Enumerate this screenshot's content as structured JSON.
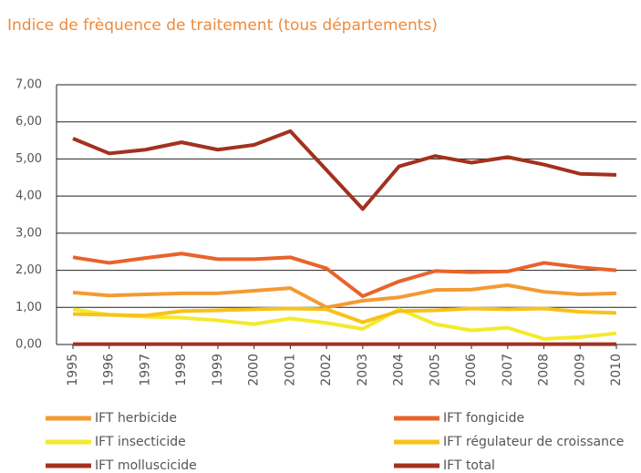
{
  "chart_data": {
    "type": "line",
    "title": "Indice de frèquence de traitement (tous départements)",
    "categories": [
      "1995",
      "1996",
      "1997",
      "1998",
      "1999",
      "2000",
      "2001",
      "2002",
      "2003",
      "2004",
      "2005",
      "2006",
      "2007",
      "2008",
      "2009",
      "2010"
    ],
    "ylim": [
      0,
      7
    ],
    "yticks": [
      {
        "value": 0,
        "label": "0,00"
      },
      {
        "value": 1,
        "label": "1,00"
      },
      {
        "value": 2,
        "label": "2,00"
      },
      {
        "value": 3,
        "label": "3,00"
      },
      {
        "value": 4,
        "label": "4,00"
      },
      {
        "value": 5,
        "label": "5,00"
      },
      {
        "value": 6,
        "label": "6,00"
      },
      {
        "value": 7,
        "label": "7,00"
      }
    ],
    "grid": true,
    "series": [
      {
        "name": "IFT herbicide",
        "color": "#f39a33",
        "values": [
          1.4,
          1.32,
          1.35,
          1.38,
          1.38,
          1.45,
          1.52,
          1.0,
          1.18,
          1.27,
          1.47,
          1.48,
          1.6,
          1.42,
          1.35,
          1.38
        ]
      },
      {
        "name": "IFT fongicide",
        "color": "#e8632b",
        "values": [
          2.35,
          2.2,
          2.33,
          2.45,
          2.3,
          2.3,
          2.35,
          2.05,
          1.3,
          1.7,
          1.98,
          1.95,
          1.97,
          2.2,
          2.08,
          2.0
        ]
      },
      {
        "name": "IFT insecticide",
        "color": "#f3ea2c",
        "values": [
          0.95,
          0.8,
          0.75,
          0.72,
          0.65,
          0.55,
          0.7,
          0.58,
          0.42,
          0.95,
          0.55,
          0.38,
          0.45,
          0.15,
          0.2,
          0.3
        ]
      },
      {
        "name": "IFT régulateur de croissance",
        "color": "#f8c219",
        "values": [
          0.82,
          0.8,
          0.78,
          0.9,
          0.92,
          0.95,
          0.97,
          0.95,
          0.6,
          0.9,
          0.92,
          0.97,
          0.95,
          0.97,
          0.88,
          0.85
        ]
      },
      {
        "name": "IFT molluscicide",
        "color": "#a3311f",
        "values": [
          0.01,
          0.01,
          0.01,
          0.01,
          0.01,
          0.01,
          0.01,
          0.01,
          0.01,
          0.01,
          0.01,
          0.01,
          0.01,
          0.01,
          0.01,
          0.01
        ]
      },
      {
        "name": "IFT total",
        "color": "#a3311f",
        "values": [
          5.55,
          5.15,
          5.25,
          5.45,
          5.25,
          5.38,
          5.75,
          4.7,
          3.65,
          4.8,
          5.08,
          4.9,
          5.05,
          4.85,
          4.6,
          4.57
        ]
      }
    ]
  }
}
